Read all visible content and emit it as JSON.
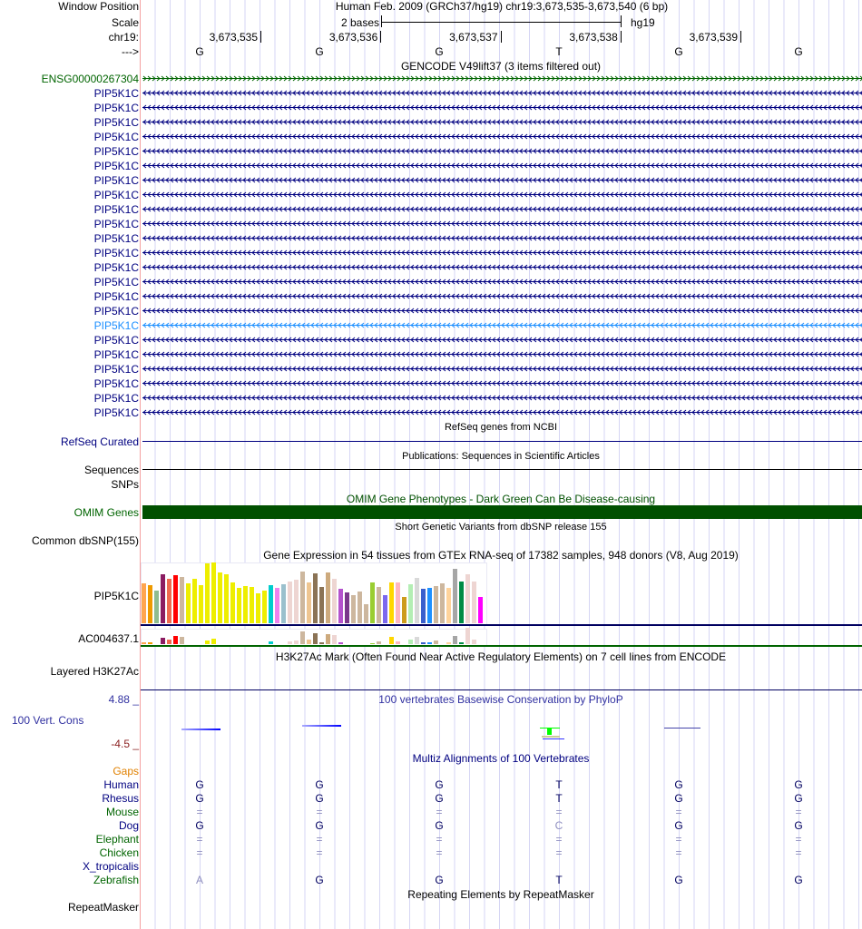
{
  "header": {
    "window_position_label": "Window Position",
    "title": "Human Feb. 2009 (GRCh37/hg19)   chr19:3,673,535-3,673,540 (6 bp)",
    "scale_label": "Scale",
    "scale_text": "2 bases",
    "scale_assembly": "hg19",
    "chrom_label": "chr19:",
    "ticks": [
      "3,673,535",
      "3,673,536",
      "3,673,537",
      "3,673,538",
      "3,673,539"
    ],
    "strand_label": "--->",
    "bases": [
      "G",
      "G",
      "G",
      "T",
      "G",
      "G"
    ]
  },
  "gencode": {
    "title": "GENCODE V49lift37 (3 items filtered out)",
    "ensg": "ENSG00000267304",
    "genes": [
      "PIP5K1C",
      "PIP5K1C",
      "PIP5K1C",
      "PIP5K1C",
      "PIP5K1C",
      "PIP5K1C",
      "PIP5K1C",
      "PIP5K1C",
      "PIP5K1C",
      "PIP5K1C",
      "PIP5K1C",
      "PIP5K1C",
      "PIP5K1C",
      "PIP5K1C",
      "PIP5K1C",
      "PIP5K1C",
      "PIP5K1C",
      "PIP5K1C",
      "PIP5K1C",
      "PIP5K1C",
      "PIP5K1C",
      "PIP5K1C",
      "PIP5K1C"
    ],
    "highlight_index": 16
  },
  "refseq": {
    "title": "RefSeq genes from NCBI",
    "label": "RefSeq Curated"
  },
  "pubs": {
    "title": "Publications: Sequences in Scientific Articles",
    "label": "Sequences"
  },
  "snps": {
    "label": "SNPs"
  },
  "omim": {
    "title": "OMIM Gene Phenotypes - Dark Green Can Be Disease-causing",
    "label": "OMIM Genes"
  },
  "dbsnp": {
    "title": "Short Genetic Variants from dbSNP release 155",
    "label": "Common dbSNP(155)"
  },
  "gtex": {
    "title": "Gene Expression in 54 tissues from GTEx RNA-seq of 17382 samples, 948 donors (V8, Aug 2019)",
    "gene1": "PIP5K1C",
    "gene2": "AC004637.1",
    "values1": [
      131,
      126,
      107,
      161,
      146,
      158,
      152,
      131,
      146,
      126,
      197,
      200,
      167,
      161,
      134,
      116,
      123,
      119,
      98,
      107,
      126,
      116,
      128,
      137,
      143,
      170,
      134,
      164,
      119,
      167,
      146,
      113,
      101,
      92,
      104,
      62,
      134,
      119,
      92,
      134,
      134,
      86,
      128,
      149,
      113,
      116,
      122,
      131,
      116,
      179,
      137,
      161,
      137,
      86
    ],
    "values2": [
      5,
      5,
      0,
      21,
      14,
      26,
      23,
      0,
      0,
      0,
      12,
      17,
      0,
      0,
      0,
      0,
      0,
      0,
      0,
      0,
      9,
      0,
      0,
      8,
      12,
      42,
      16,
      35,
      5,
      32,
      29,
      5,
      0,
      0,
      0,
      0,
      2,
      9,
      0,
      23,
      9,
      0,
      14,
      23,
      5,
      5,
      11,
      0,
      5,
      26,
      5,
      53,
      14,
      0
    ],
    "colors": [
      "#FFA54F",
      "#EE9A00",
      "#8FBC8F",
      "#8B1C62",
      "#EE6A50",
      "#FF0000",
      "#CDB79E",
      "#EEEE00",
      "#EEEE00",
      "#EEEE00",
      "#EEEE00",
      "#EEEE00",
      "#EEEE00",
      "#EEEE00",
      "#EEEE00",
      "#EEEE00",
      "#EEEE00",
      "#EEEE00",
      "#EEEE00",
      "#EEEE00",
      "#00CDCD",
      "#EE82EE",
      "#9AC0CD",
      "#EED5D2",
      "#EED5D2",
      "#CDB79E",
      "#EEC591",
      "#8B7355",
      "#8B7355",
      "#CDAA7D",
      "#EED5D2",
      "#B452CD",
      "#7A378B",
      "#CDB79E",
      "#CDB79E",
      "#CDB79E",
      "#9ACD32",
      "#CDB79E",
      "#7B68EE",
      "#FFD700",
      "#FFB6C1",
      "#CD9B1D",
      "#B4EEB4",
      "#D9D9D9",
      "#3A5FCD",
      "#1E90FF",
      "#CDB79E",
      "#CDB79E",
      "#FFD39B",
      "#A6A6A6",
      "#008B45",
      "#EED5D2",
      "#EED5D2",
      "#FF00FF"
    ]
  },
  "h3k27ac": {
    "title": "H3K27Ac Mark (Often Found Near Active Regulatory Elements) on 7 cell lines from ENCODE",
    "label": "Layered H3K27Ac"
  },
  "cons": {
    "title": "100 vertebrates Basewise Conservation by PhyloP",
    "label": "100 Vert. Cons",
    "max": "4.88 _",
    "min": "-4.5 _"
  },
  "multiz": {
    "title": "Multiz Alignments of 100 Vertebrates",
    "gaps_label": "Gaps",
    "species": [
      {
        "name": "Human",
        "bases": [
          "G",
          "G",
          "G",
          "T",
          "G",
          "G"
        ]
      },
      {
        "name": "Rhesus",
        "bases": [
          "G",
          "G",
          "G",
          "T",
          "G",
          "G"
        ]
      },
      {
        "name": "Mouse",
        "bases": [
          "=",
          "=",
          "=",
          "=",
          "=",
          "="
        ]
      },
      {
        "name": "Dog",
        "bases": [
          "G",
          "G",
          "G",
          "C",
          "G",
          "G"
        ]
      },
      {
        "name": "Elephant",
        "bases": [
          "=",
          "=",
          "=",
          "=",
          "=",
          "="
        ]
      },
      {
        "name": "Chicken",
        "bases": [
          "=",
          "=",
          "=",
          "=",
          "=",
          "="
        ]
      },
      {
        "name": "X_tropicalis",
        "bases": [
          "",
          "",
          "",
          "",
          "",
          ""
        ]
      },
      {
        "name": "Zebrafish",
        "bases": [
          "A",
          "G",
          "G",
          "T",
          "G",
          "G"
        ]
      }
    ]
  },
  "repeat": {
    "title": "Repeating Elements by RepeatMasker",
    "label": "RepeatMasker"
  },
  "colors": {
    "navy": "#000080",
    "green": "#006400",
    "omim": "#005000",
    "gaps": "#E08000",
    "highlight": "#1E90FF",
    "cons_label": "#3030A0",
    "min": "#8B2020"
  }
}
